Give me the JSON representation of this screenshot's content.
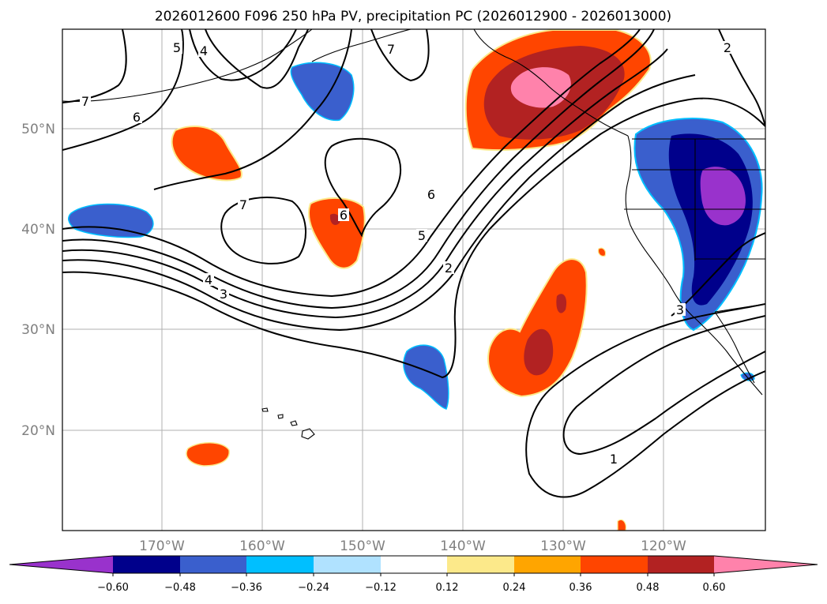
{
  "title": "2026012600 F096 250 hPa PV, precipitation PC (2026012900 - 2026013000)",
  "map": {
    "lat_labels": [
      "50°N",
      "40°N",
      "30°N",
      "20°N"
    ],
    "lon_labels": [
      "170°W",
      "160°W",
      "150°W",
      "140°W",
      "130°W",
      "120°W"
    ]
  },
  "colorbar": {
    "ticks": [
      "−0.60",
      "−0.48",
      "−0.36",
      "−0.24",
      "−0.12",
      "0.12",
      "0.24",
      "0.36",
      "0.48",
      "0.60"
    ],
    "colors": {
      "neg_extend": "#9932cc",
      "neg_060": "#00008b",
      "neg_048": "#3a5fcd",
      "neg_036": "#00bfff",
      "neg_024": "#b0e2ff",
      "zero": "#ffffff",
      "pos_012": "#fce98a",
      "pos_024": "#ffa500",
      "pos_036": "#ff4500",
      "pos_048": "#b22222",
      "pos_extend": "#ff82ab"
    }
  },
  "contour_labels": {
    "c1": "7",
    "c2": "5",
    "c3": "4",
    "c4": "7",
    "c5": "6",
    "c6": "2",
    "c7": "7",
    "c8": "6",
    "c9": "6",
    "c10": "5",
    "c11": "2",
    "c12": "4",
    "c13": "3",
    "c14": "3",
    "c15": "1"
  }
}
